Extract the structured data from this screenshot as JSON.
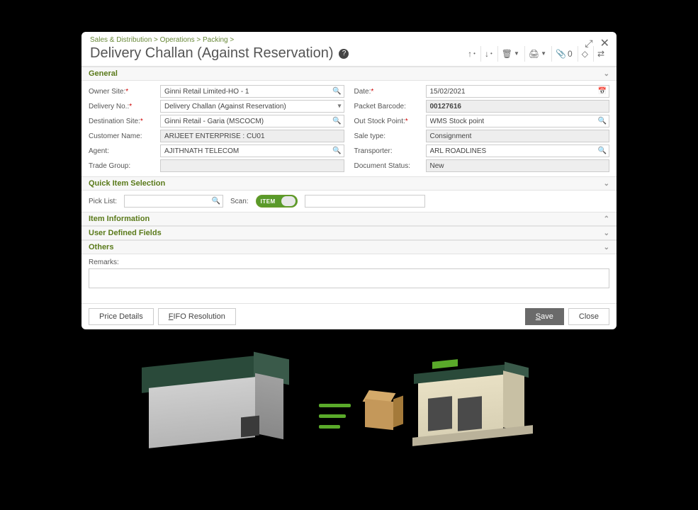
{
  "breadcrumb": {
    "l1": "Sales & Distribution",
    "l2": "Operations",
    "l3": "Packing"
  },
  "title": "Delivery Challan (Against Reservation)",
  "toolbar": {
    "attach_count": "0"
  },
  "sections": {
    "general": "General",
    "quick": "Quick Item Selection",
    "item_info": "Item Information",
    "udf": "User Defined Fields",
    "others": "Others"
  },
  "general": {
    "left": {
      "owner_site": {
        "label": "Owner Site:",
        "value": "Ginni Retail Limited-HO - 1"
      },
      "delivery_no": {
        "label": "Delivery No.:",
        "value": "Delivery Challan (Against Reservation)"
      },
      "dest_site": {
        "label": "Destination Site:",
        "value": "Ginni Retail - Garia (MSCOCM)"
      },
      "customer": {
        "label": "Customer Name:",
        "value": "ARIJEET ENTERPRISE : CU01"
      },
      "agent": {
        "label": "Agent:",
        "value": "AJITHNATH TELECOM"
      },
      "trade_group": {
        "label": "Trade Group:",
        "value": ""
      }
    },
    "right": {
      "date": {
        "label": "Date:",
        "value": "15/02/2021"
      },
      "packet_barcode": {
        "label": "Packet Barcode:",
        "value": "00127616"
      },
      "out_stock": {
        "label": "Out Stock Point:",
        "value": "WMS Stock point"
      },
      "sale_type": {
        "label": "Sale type:",
        "value": "Consignment"
      },
      "transporter": {
        "label": "Transporter:",
        "value": "ARL ROADLINES"
      },
      "doc_status": {
        "label": "Document Status:",
        "value": "New"
      }
    }
  },
  "quick": {
    "pick_list_label": "Pick List:",
    "scan_label": "Scan:",
    "scan_mode": "ITEM"
  },
  "others": {
    "remarks_label": "Remarks:",
    "remarks_value": ""
  },
  "footer": {
    "price_details": "Price Details",
    "fifo": "FIFO Resolution",
    "save": "Save",
    "close": "Close",
    "save_underline": "S"
  },
  "colors": {
    "accent_green": "#5a7a1a",
    "req_red": "#c00",
    "primary_btn": "#6a6a6a"
  }
}
